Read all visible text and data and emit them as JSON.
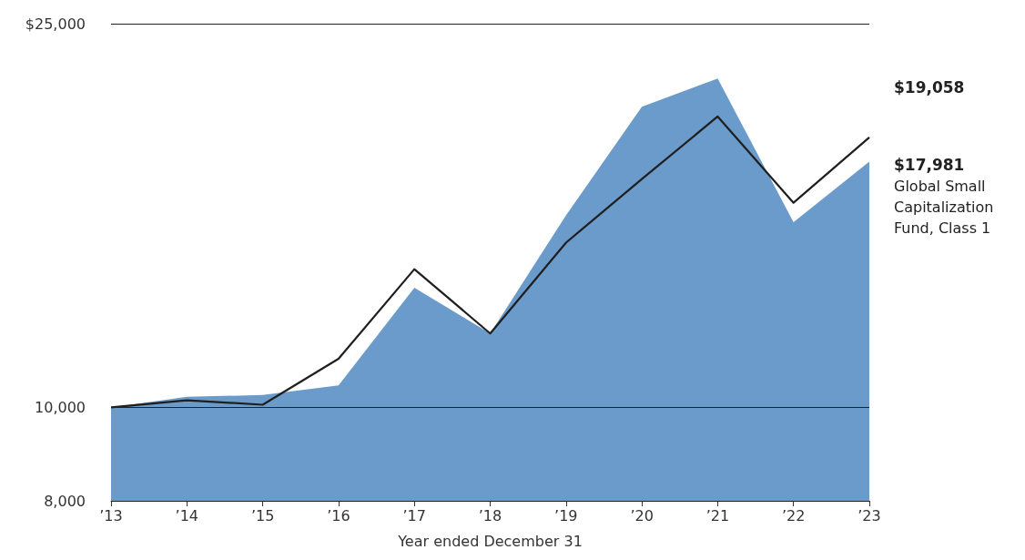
{
  "chart_data": {
    "type": "line",
    "xlabel": "Year ended December 31",
    "categories": [
      "’13",
      "’14",
      "’15",
      "’16",
      "’17",
      "’18",
      "’19",
      "’20",
      "’21",
      "’22",
      "’23"
    ],
    "series": [
      {
        "type": "area",
        "name": "Global Small Capitalization Fund, Class 1",
        "color": "#6a9bca",
        "values": [
          10000,
          10256,
          10299,
          10540,
          13310,
          11930,
          15820,
          20500,
          21930,
          15560,
          17981
        ],
        "value_labels": [
          null,
          null,
          null,
          null,
          null,
          null,
          null,
          null,
          null,
          null,
          "$17,981"
        ]
      },
      {
        "color": "#1f1f1f",
        "values": [
          10000,
          10170,
          10063,
          11230,
          13910,
          11930,
          14820,
          17250,
          20030,
          16300,
          19058
        ],
        "value_labels": [
          null,
          null,
          null,
          null,
          null,
          null,
          null,
          null,
          null,
          null,
          "$19,058"
        ]
      }
    ],
    "log": true,
    "ylim": [
      8000,
      25000
    ],
    "yticks": [
      {
        "value": 8000,
        "label": "8,000"
      },
      {
        "value": 10000,
        "label": "10,000"
      },
      {
        "value": 25000,
        "label": "$25,000"
      }
    ],
    "grid": "y",
    "legend": false,
    "marker": "none",
    "line_style": "solid"
  }
}
